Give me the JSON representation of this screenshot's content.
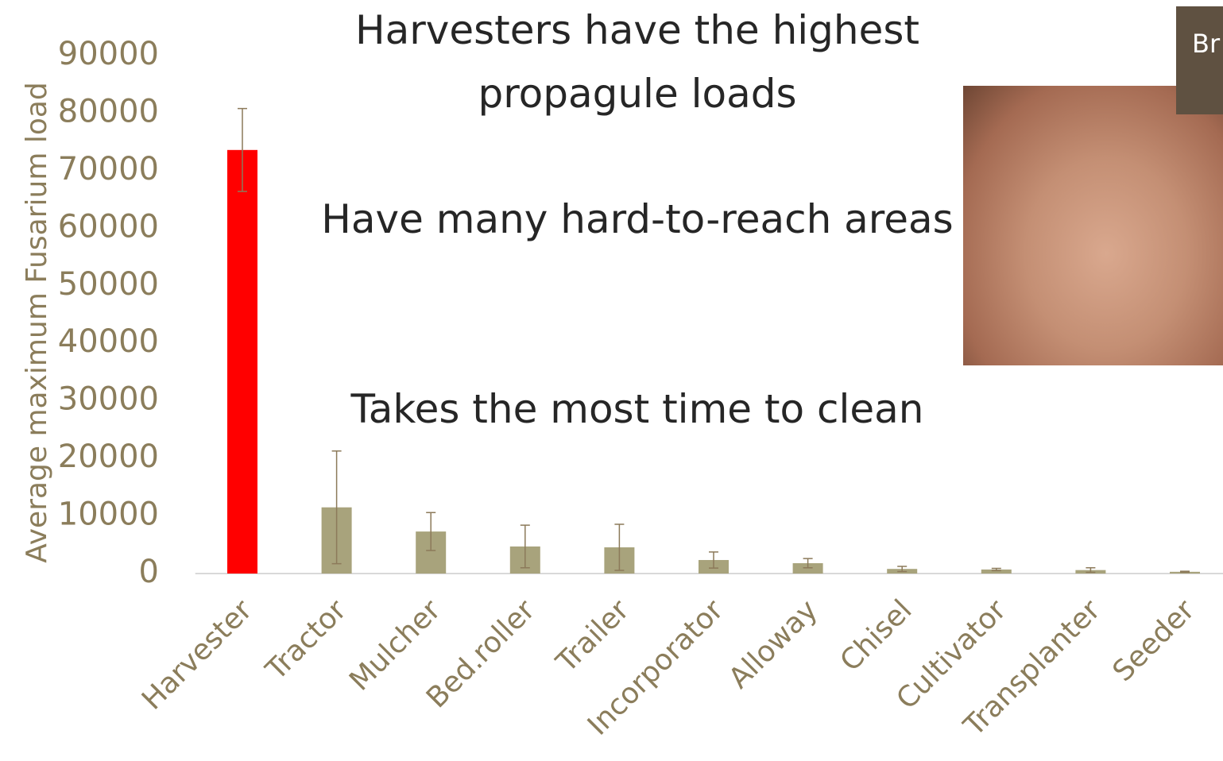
{
  "chart_data": {
    "type": "bar",
    "title": "Harvesters have the highest propagule loads",
    "annotations": [
      "Have many hard-to-reach areas",
      "Takes the most time to clean"
    ],
    "side_label": "Br",
    "y_label": "Average maximum Fusarium load",
    "categories": [
      "Harvester",
      "Tractor",
      "Mulcher",
      "Bed.roller",
      "Trailer",
      "Incorporator",
      "Alloway",
      "Chisel",
      "Cultivator",
      "Transplanter",
      "Seeder"
    ],
    "values": [
      73600,
      11500,
      7300,
      4700,
      4550,
      2350,
      1800,
      800,
      700,
      600,
      300
    ],
    "errors": [
      7200,
      9800,
      3300,
      3700,
      4000,
      1400,
      800,
      450,
      200,
      400,
      100
    ],
    "colors": [
      "#ff0000",
      "#a8a37c",
      "#a8a37c",
      "#a8a37c",
      "#a8a37c",
      "#a8a37c",
      "#a8a37c",
      "#a8a37c",
      "#a8a37c",
      "#a8a37c",
      "#a8a37c"
    ],
    "error_color": "#8c7a5a",
    "ylim": [
      0,
      90000
    ],
    "yticks": [
      0,
      10000,
      20000,
      30000,
      40000,
      50000,
      60000,
      70000,
      80000,
      90000
    ]
  }
}
